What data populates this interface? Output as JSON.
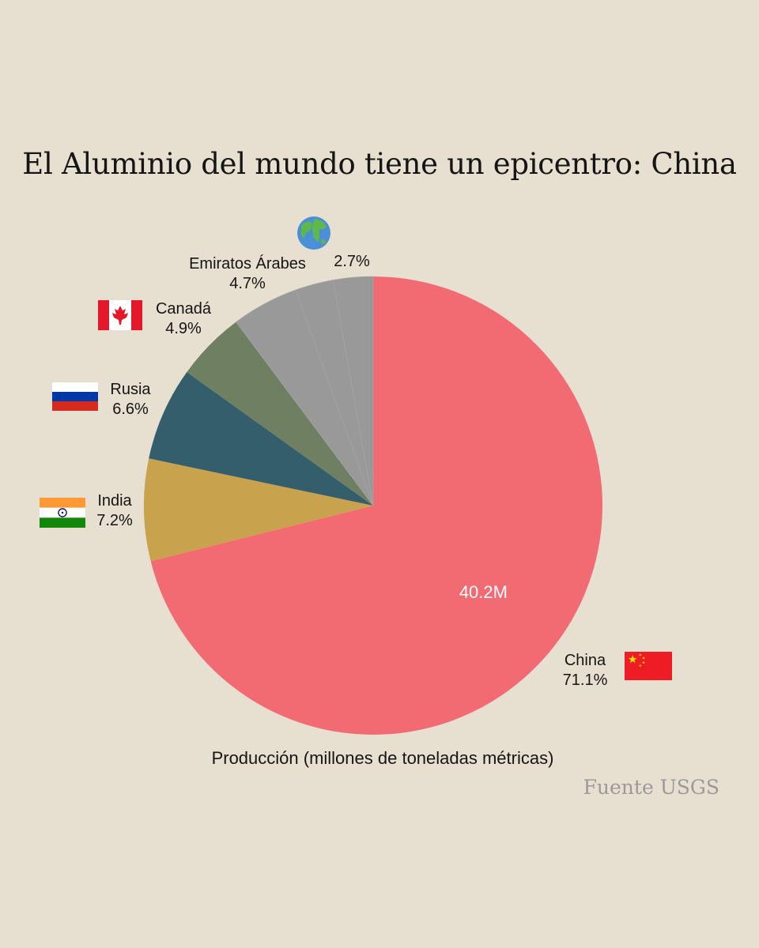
{
  "chart_data": {
    "type": "pie",
    "title": "El Aluminio del mundo tiene un epicentro: China",
    "xlabel": "Producción (millones de toneladas métricas)",
    "source": "Fuente USGS",
    "start_angle_deg": 0,
    "direction": "clockwise",
    "slices": [
      {
        "label": "China",
        "percent_label": "71.1%",
        "value": 71.1,
        "inner_label": "40.2M",
        "color": "#f26a72",
        "flag": "china-flag"
      },
      {
        "label": "India",
        "percent_label": "7.2%",
        "value": 7.2,
        "color": "#c9a24e",
        "flag": "india-flag"
      },
      {
        "label": "Rusia",
        "percent_label": "6.6%",
        "value": 6.6,
        "color": "#345e6b",
        "flag": "russia-flag"
      },
      {
        "label": "Canadá",
        "percent_label": "4.9%",
        "value": 4.9,
        "color": "#6e7f62",
        "flag": "canada-flag"
      },
      {
        "label": "Emiratos Árabes",
        "percent_label": "4.7%",
        "value": 4.7,
        "color": "#999999",
        "flag": ""
      },
      {
        "label": "",
        "percent_label": "2.7%",
        "value": 2.7,
        "color": "#999999",
        "flag": "globe-icon"
      },
      {
        "label": "",
        "percent_label": "",
        "value": 2.8,
        "color": "#999999",
        "flag": ""
      }
    ]
  }
}
